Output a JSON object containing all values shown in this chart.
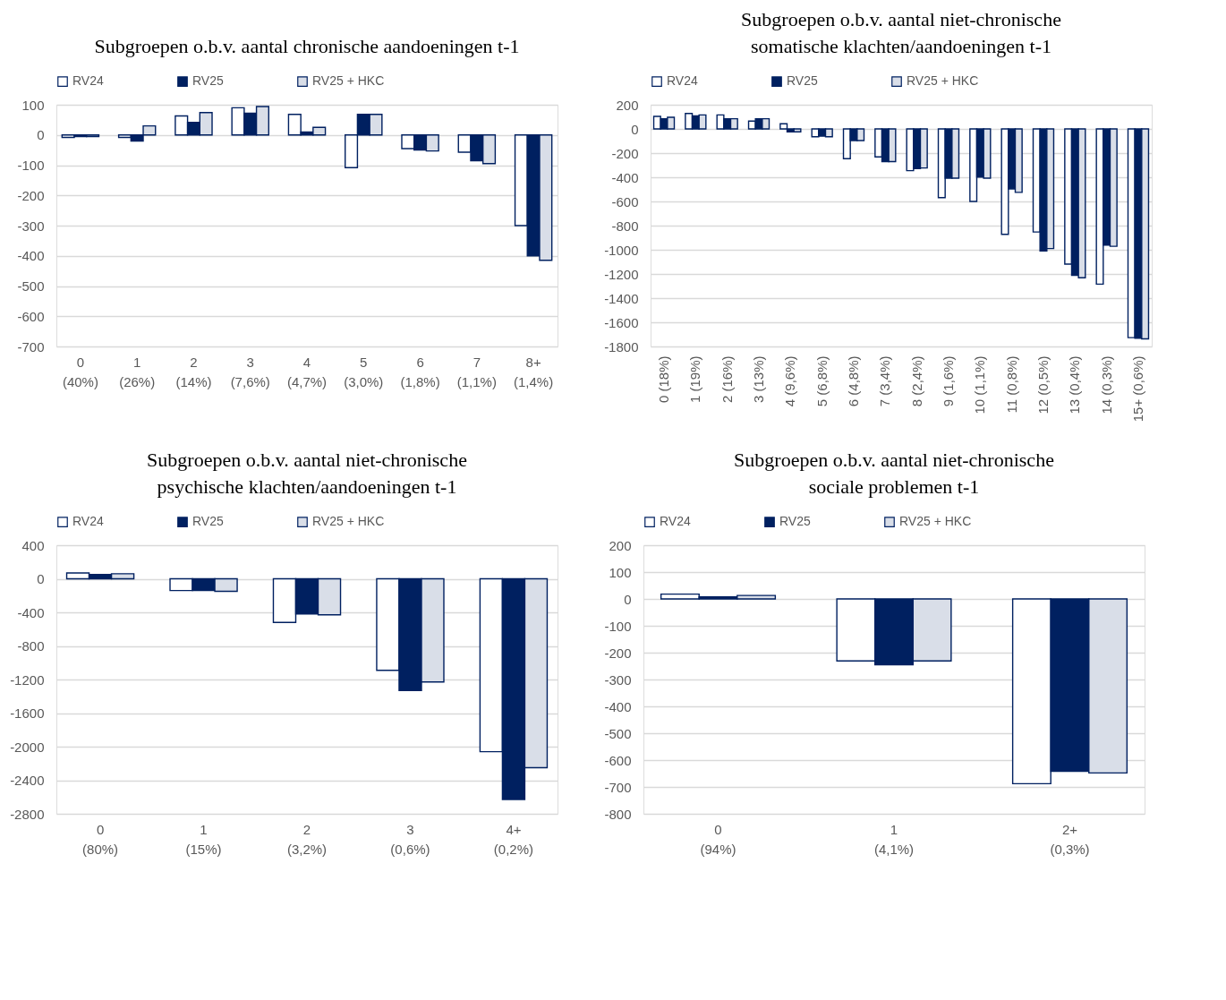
{
  "chart_data": [
    {
      "type": "bar",
      "title": "Subgroepen o.b.v. aantal chronische aandoeningen t-1",
      "categories": [
        "0\n(40%)",
        "1\n(26%)",
        "2\n(14%)",
        "3\n(7,6%)",
        "4\n(4,7%)",
        "5\n(3,0%)",
        "6\n(1,8%)",
        "7\n(1,1%)",
        "8+\n(1,4%)"
      ],
      "series": [
        {
          "name": "RV24",
          "color": "#ffffff",
          "values": [
            -8,
            -8,
            63,
            90,
            68,
            -108,
            -45,
            -57,
            -300
          ]
        },
        {
          "name": "RV25",
          "color": "#002060",
          "values": [
            -5,
            -20,
            42,
            72,
            10,
            68,
            -50,
            -85,
            -400
          ]
        },
        {
          "name": "RV25 + HKC",
          "color": "#d9dee8",
          "values": [
            -5,
            30,
            74,
            94,
            25,
            68,
            -53,
            -95,
            -415
          ]
        }
      ],
      "ylim": [
        -700,
        100
      ],
      "yticks": [
        -700,
        -600,
        -500,
        -400,
        -300,
        -200,
        -100,
        0,
        100
      ],
      "grid": "y",
      "legend": "top"
    },
    {
      "type": "bar",
      "title": "Subgroepen o.b.v. aantal niet-chronische\nsomatische klachten/aandoeningen t-1",
      "categories": [
        "0 (18%)",
        "1 (19%)",
        "2 (16%)",
        "3 (13%)",
        "4 (9,6%)",
        "5 (6,8%)",
        "6 (4,8%)",
        "7 (3,4%)",
        "8 (2,4%)",
        "9 (1,6%)",
        "10 (1,1%)",
        "11 (0,8%)",
        "12 (0,5%)",
        "13 (0,4%)",
        "14 (0,3%)",
        "15+ (0,6%)"
      ],
      "series": [
        {
          "name": "RV24",
          "color": "#ffffff",
          "values": [
            104,
            128,
            116,
            65,
            43,
            -65,
            -246,
            -231,
            -345,
            -569,
            -600,
            -872,
            -853,
            -1118,
            -1284,
            -1727
          ]
        },
        {
          "name": "RV25",
          "color": "#002060",
          "values": [
            84,
            108,
            84,
            84,
            -24,
            -60,
            -96,
            -270,
            -328,
            -407,
            -398,
            -496,
            -1010,
            -1212,
            -961,
            -1732
          ]
        },
        {
          "name": "RV25 + HKC",
          "color": "#d9dee8",
          "values": [
            96,
            116,
            84,
            84,
            -24,
            -65,
            -96,
            -270,
            -323,
            -407,
            -407,
            -525,
            -990,
            -1231,
            -971,
            -1737
          ]
        }
      ],
      "ylim": [
        -1800,
        200
      ],
      "yticks": [
        -1800,
        -1600,
        -1400,
        -1200,
        -1000,
        -800,
        -600,
        -400,
        -200,
        0,
        200
      ],
      "grid": "y",
      "legend": "top"
    },
    {
      "type": "bar",
      "title": "Subgroepen o.b.v. aantal niet-chronische\npsychische klachten/aandoeningen t-1",
      "categories": [
        "0\n(80%)",
        "1\n(15%)",
        "2\n(3,2%)",
        "3\n(0,6%)",
        "4+\n(0,2%)"
      ],
      "series": [
        {
          "name": "RV24",
          "color": "#ffffff",
          "values": [
            70,
            -140,
            -520,
            -1090,
            -2060
          ]
        },
        {
          "name": "RV25",
          "color": "#002060",
          "values": [
            50,
            -140,
            -420,
            -1330,
            -2630
          ]
        },
        {
          "name": "RV25 + HKC",
          "color": "#d9dee8",
          "values": [
            60,
            -150,
            -430,
            -1230,
            -2250
          ]
        }
      ],
      "ylim": [
        -2800,
        400
      ],
      "yticks": [
        -2800,
        -2400,
        -2000,
        -1600,
        -1200,
        -800,
        -400,
        0,
        400
      ],
      "grid": "y",
      "legend": "top"
    },
    {
      "type": "bar",
      "title": "Subgroepen o.b.v. aantal niet-chronische\nsociale problemen t-1",
      "categories": [
        "0\n(94%)",
        "1\n(4,1%)",
        "2+\n(0,3%)"
      ],
      "series": [
        {
          "name": "RV24",
          "color": "#ffffff",
          "values": [
            18,
            -231,
            -688
          ]
        },
        {
          "name": "RV25",
          "color": "#002060",
          "values": [
            8,
            -245,
            -642
          ]
        },
        {
          "name": "RV25 + HKC",
          "color": "#d9dee8",
          "values": [
            13,
            -231,
            -648
          ]
        }
      ],
      "ylim": [
        -800,
        200
      ],
      "yticks": [
        -800,
        -700,
        -600,
        -500,
        -400,
        -300,
        -200,
        -100,
        0,
        100,
        200
      ],
      "grid": "y",
      "legend": "top"
    }
  ]
}
